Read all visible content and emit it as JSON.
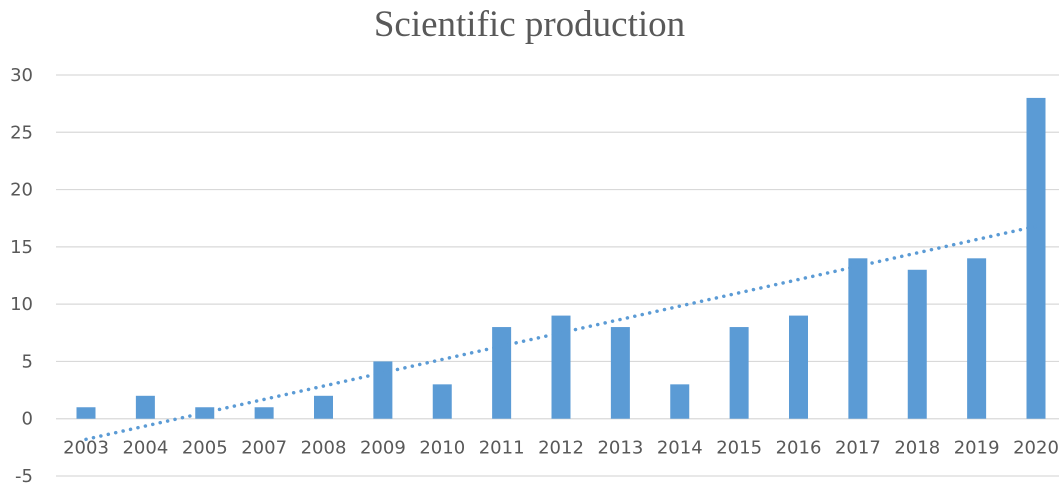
{
  "chart_data": {
    "type": "bar",
    "title": "Scientific production",
    "xlabel": "",
    "ylabel": "",
    "categories": [
      "2003",
      "2004",
      "2005",
      "2007",
      "2008",
      "2009",
      "2010",
      "2011",
      "2012",
      "2013",
      "2014",
      "2015",
      "2016",
      "2017",
      "2018",
      "2019",
      "2020"
    ],
    "values": [
      1,
      2,
      1,
      1,
      2,
      5,
      3,
      8,
      9,
      8,
      3,
      8,
      9,
      14,
      13,
      14,
      28
    ],
    "ylim": [
      -5,
      30
    ],
    "yticks": [
      -5,
      0,
      5,
      10,
      15,
      20,
      25,
      30
    ],
    "grid": true,
    "legend": "none",
    "trendline": {
      "type": "linear",
      "style": "dotted",
      "start": -1.8,
      "end": 16.8
    },
    "colors": {
      "bar": "#5B9BD5",
      "trendline": "#5B9BD5",
      "grid": "#D9D9D9",
      "text": "#595959"
    }
  }
}
